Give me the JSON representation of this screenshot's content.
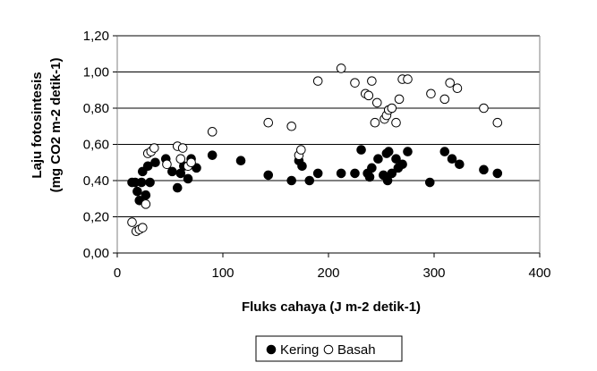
{
  "chart_data": {
    "type": "scatter",
    "xlabel": "Fluks cahaya (J m-2 detik-1)",
    "ylabel_line1": "Laju fotosintesis",
    "ylabel_line2": "(mg CO2 m-2 detik-1)",
    "xlim": [
      0,
      400
    ],
    "ylim": [
      0,
      1.2
    ],
    "x_ticks": [
      0,
      100,
      200,
      300,
      400
    ],
    "x_tick_labels": [
      "0",
      "100",
      "200",
      "300",
      "400"
    ],
    "y_ticks": [
      0,
      0.2,
      0.4,
      0.6,
      0.8,
      1.0,
      1.2
    ],
    "y_tick_labels": [
      "0,00",
      "0,20",
      "0,40",
      "0,60",
      "0,80",
      "1,00",
      "1,20"
    ],
    "grid": "horizontal",
    "legend_position": "bottom",
    "series": [
      {
        "name": "Kering",
        "marker": "filled-circle",
        "color": "#000000",
        "points": [
          [
            14,
            0.39
          ],
          [
            17,
            0.39
          ],
          [
            19,
            0.34
          ],
          [
            21,
            0.29
          ],
          [
            23,
            0.39
          ],
          [
            24,
            0.45
          ],
          [
            27,
            0.32
          ],
          [
            29,
            0.48
          ],
          [
            31,
            0.39
          ],
          [
            36,
            0.5
          ],
          [
            46,
            0.52
          ],
          [
            52,
            0.45
          ],
          [
            57,
            0.36
          ],
          [
            60,
            0.44
          ],
          [
            63,
            0.48
          ],
          [
            67,
            0.41
          ],
          [
            70,
            0.52
          ],
          [
            75,
            0.47
          ],
          [
            90,
            0.54
          ],
          [
            117,
            0.51
          ],
          [
            143,
            0.43
          ],
          [
            165,
            0.4
          ],
          [
            172,
            0.51
          ],
          [
            175,
            0.48
          ],
          [
            182,
            0.4
          ],
          [
            190,
            0.44
          ],
          [
            212,
            0.44
          ],
          [
            225,
            0.44
          ],
          [
            231,
            0.57
          ],
          [
            237,
            0.44
          ],
          [
            239,
            0.42
          ],
          [
            241,
            0.47
          ],
          [
            247,
            0.52
          ],
          [
            252,
            0.43
          ],
          [
            255,
            0.55
          ],
          [
            256,
            0.4
          ],
          [
            257,
            0.56
          ],
          [
            260,
            0.44
          ],
          [
            264,
            0.52
          ],
          [
            266,
            0.47
          ],
          [
            270,
            0.49
          ],
          [
            275,
            0.56
          ],
          [
            296,
            0.39
          ],
          [
            310,
            0.56
          ],
          [
            317,
            0.52
          ],
          [
            324,
            0.49
          ],
          [
            347,
            0.46
          ],
          [
            360,
            0.44
          ]
        ]
      },
      {
        "name": "Basah",
        "marker": "open-circle",
        "color": "#000000",
        "points": [
          [
            14,
            0.17
          ],
          [
            18,
            0.12
          ],
          [
            21,
            0.13
          ],
          [
            24,
            0.14
          ],
          [
            27,
            0.27
          ],
          [
            29,
            0.55
          ],
          [
            32,
            0.56
          ],
          [
            35,
            0.58
          ],
          [
            47,
            0.49
          ],
          [
            57,
            0.59
          ],
          [
            60,
            0.52
          ],
          [
            62,
            0.58
          ],
          [
            67,
            0.48
          ],
          [
            70,
            0.5
          ],
          [
            90,
            0.67
          ],
          [
            143,
            0.72
          ],
          [
            165,
            0.7
          ],
          [
            172,
            0.54
          ],
          [
            174,
            0.57
          ],
          [
            190,
            0.95
          ],
          [
            212,
            1.02
          ],
          [
            225,
            0.94
          ],
          [
            235,
            0.88
          ],
          [
            238,
            0.87
          ],
          [
            241,
            0.95
          ],
          [
            244,
            0.72
          ],
          [
            246,
            0.83
          ],
          [
            253,
            0.74
          ],
          [
            255,
            0.76
          ],
          [
            257,
            0.79
          ],
          [
            260,
            0.8
          ],
          [
            264,
            0.72
          ],
          [
            267,
            0.85
          ],
          [
            270,
            0.96
          ],
          [
            275,
            0.96
          ],
          [
            297,
            0.88
          ],
          [
            310,
            0.85
          ],
          [
            315,
            0.94
          ],
          [
            322,
            0.91
          ],
          [
            347,
            0.8
          ],
          [
            360,
            0.72
          ]
        ]
      }
    ]
  }
}
